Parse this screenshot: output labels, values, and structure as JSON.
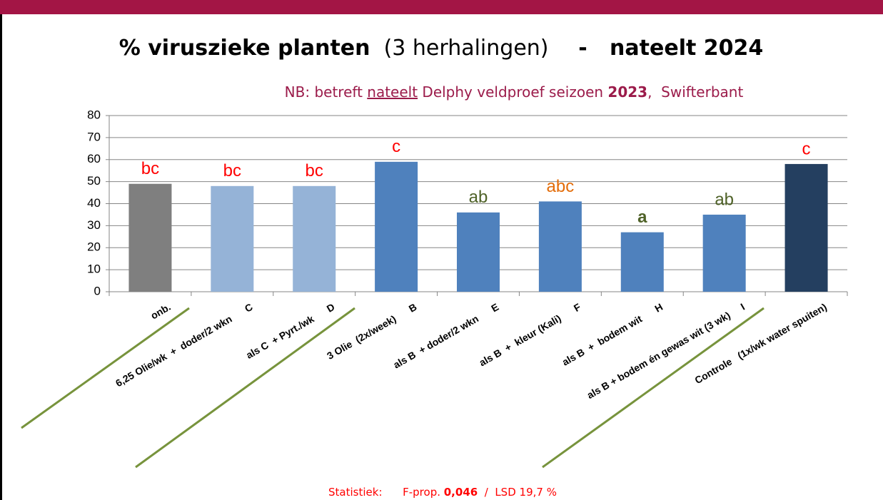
{
  "chart_data": {
    "type": "bar",
    "title_parts": [
      {
        "text": "% viruszieke planten",
        "bold": true
      },
      {
        "text": "  (3 herhalingen)",
        "bold": false
      },
      {
        "text": "    -   nateelt 2024",
        "bold": true
      }
    ],
    "subtitle_parts": [
      {
        "text": "NB: betreft ",
        "bold": false,
        "underline": false
      },
      {
        "text": "nateelt",
        "bold": false,
        "underline": true
      },
      {
        "text": " Delphy veldproef seizoen ",
        "bold": false,
        "underline": false
      },
      {
        "text": "2023",
        "bold": true,
        "underline": false
      },
      {
        "text": ",  Swifterbant",
        "bold": false,
        "underline": false
      }
    ],
    "footer_parts": [
      {
        "text": "Statistiek:      F-prop. ",
        "bold": false
      },
      {
        "text": "0,046",
        "bold": true
      },
      {
        "text": "  /  LSD 19,7 %",
        "bold": false
      }
    ],
    "categories": [
      "onb.",
      "6,25 Olie/wk  +  doder/2 wkn      C",
      "als C  + Pyrt./wk      D",
      "3 Olie  (2x/week)      B",
      "als B  + doder/2 wkn      E",
      "als B  +  kleur (Kali)      F",
      "als B  +  bodem wit      H",
      "als B + bodem én gewas wit (3 wk)     I",
      "Controle   (1x/wk water spuiten)"
    ],
    "values": [
      49,
      48,
      48,
      59,
      36,
      41,
      27,
      35,
      58
    ],
    "colors": [
      "#7f7f7f",
      "#95b3d7",
      "#95b3d7",
      "#4f81bd",
      "#4f81bd",
      "#4f81bd",
      "#4f81bd",
      "#4f81bd",
      "#243f60"
    ],
    "annotations": [
      {
        "text": "bc",
        "color": "#ff0000",
        "bold": false
      },
      {
        "text": "bc",
        "color": "#ff0000",
        "bold": false
      },
      {
        "text": "bc",
        "color": "#ff0000",
        "bold": false
      },
      {
        "text": "c",
        "color": "#ff0000",
        "bold": false
      },
      {
        "text": "ab",
        "color": "#4f6228",
        "bold": false
      },
      {
        "text": "abc",
        "color": "#e36c09",
        "bold": false
      },
      {
        "text": "a",
        "color": "#4f6228",
        "bold": true
      },
      {
        "text": "ab",
        "color": "#4f6228",
        "bold": false
      },
      {
        "text": "c",
        "color": "#ff0000",
        "bold": false
      }
    ],
    "ylim": [
      0,
      80
    ],
    "yticks": [
      0,
      10,
      20,
      30,
      40,
      50,
      60,
      70,
      80
    ],
    "grid": true
  }
}
